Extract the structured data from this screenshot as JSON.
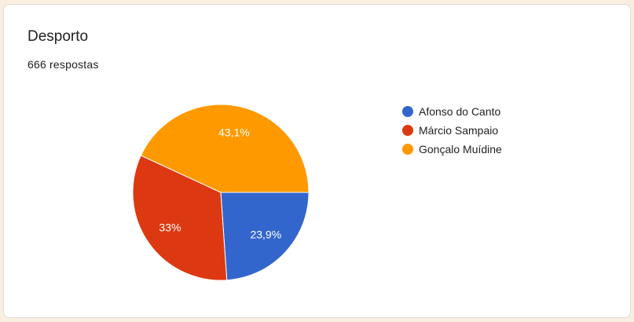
{
  "card": {
    "title": "Desporto",
    "responses": "666 respostas"
  },
  "chart_data": {
    "type": "pie",
    "title": "Desporto",
    "categories": [
      "Afonso do Canto",
      "Márcio Sampaio",
      "Gonçalo Muídine"
    ],
    "values": [
      23.9,
      33,
      43.1
    ],
    "data_labels": [
      "23,9%",
      "33%",
      "43,1%"
    ],
    "colors": [
      "#3366cc",
      "#dc3912",
      "#ff9900"
    ],
    "legend_position": "right"
  }
}
